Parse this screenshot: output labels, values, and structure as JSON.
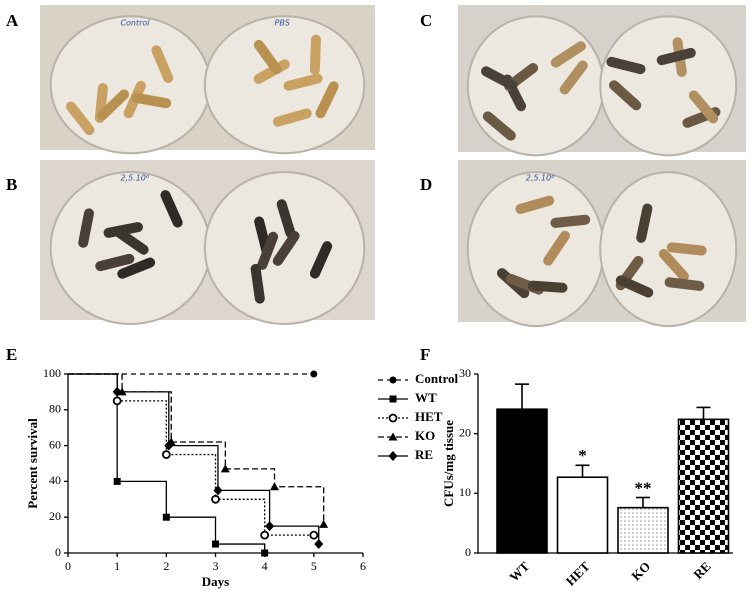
{
  "panel_labels": [
    "A",
    "B",
    "C",
    "D",
    "E",
    "F"
  ],
  "photos": [
    {
      "dish_labels": [
        "Control",
        "PBS"
      ]
    },
    {
      "dish_labels": [
        "2,5.10⁶"
      ]
    },
    {
      "dish_labels": []
    },
    {
      "dish_labels": [
        "2,5.10⁶"
      ]
    }
  ],
  "chart_data": [
    {
      "type": "line",
      "step": true,
      "xlabel": "Days",
      "ylabel": "Percent survival",
      "xlim": [
        0,
        6
      ],
      "xticks": [
        0,
        1,
        2,
        3,
        4,
        5,
        6
      ],
      "ylim": [
        0,
        100
      ],
      "yticks": [
        0,
        20,
        40,
        60,
        80,
        100
      ],
      "series": [
        {
          "name": "Control",
          "color": "#000000",
          "dash": "5 4",
          "marker": "circle",
          "x": [
            0,
            5
          ],
          "values": [
            100,
            100
          ]
        },
        {
          "name": "WT",
          "color": "#000000",
          "dash": "none",
          "marker": "square",
          "x": [
            0,
            1,
            2,
            3,
            4
          ],
          "values": [
            100,
            40,
            20,
            5,
            0
          ]
        },
        {
          "name": "HET",
          "color": "#000000",
          "dash": "2 2",
          "marker": "open-circle",
          "x": [
            0,
            1,
            2,
            3,
            4,
            5
          ],
          "values": [
            100,
            85,
            55,
            30,
            10,
            10
          ]
        },
        {
          "name": "KO",
          "color": "#000000",
          "dash": "6 3",
          "marker": "triangle",
          "x": [
            0,
            1.1,
            2.1,
            3.2,
            4.2,
            5.2
          ],
          "values": [
            100,
            90,
            62,
            47,
            37,
            16
          ]
        },
        {
          "name": "RE",
          "color": "#000000",
          "dash": "none",
          "marker": "diamond",
          "x": [
            0,
            1,
            2.05,
            3.05,
            4.1,
            5.1
          ],
          "values": [
            100,
            90,
            60,
            35,
            15,
            5
          ]
        }
      ]
    },
    {
      "type": "bar",
      "ylabel": "CFUs/mg tissue",
      "categories": [
        "WT",
        "HET",
        "KO",
        "RE"
      ],
      "values": [
        24.1,
        12.7,
        7.6,
        22.4
      ],
      "errors": [
        4.2,
        2.0,
        1.7,
        2.0
      ],
      "fills": [
        "solid",
        "white",
        "dots",
        "checker"
      ],
      "ylim": [
        0,
        30
      ],
      "yticks": [
        0,
        10,
        20,
        30
      ],
      "annotations": [
        {
          "label": "HET",
          "text": "*"
        },
        {
          "label": "KO",
          "text": "**"
        }
      ]
    }
  ]
}
